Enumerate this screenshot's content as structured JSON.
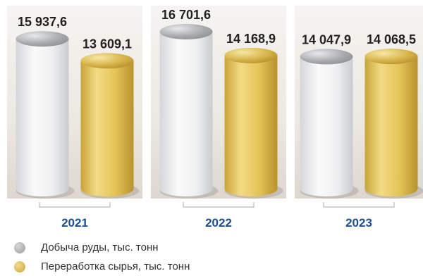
{
  "chart_data": {
    "type": "bar",
    "categories": [
      "2021",
      "2022",
      "2023"
    ],
    "series": [
      {
        "name": "Добыча руды, тыс. тонн",
        "values": [
          15937.6,
          16701.6,
          14047.9
        ],
        "labels": [
          "15 937,6",
          "16 701,6",
          "14 047,9"
        ],
        "color": "#b9b9b9"
      },
      {
        "name": "Переработка сырья, тыс. тонн",
        "values": [
          13609.1,
          14168.9,
          14068.5
        ],
        "labels": [
          "13 609,1",
          "14 168,9",
          "14 068,5"
        ],
        "color": "#e2c45a"
      }
    ],
    "title": "",
    "xlabel": "",
    "ylabel": "",
    "ylim": [
      0,
      18500
    ],
    "grid": false,
    "legend": "bottom-left"
  },
  "colors": {
    "panel": "#ebe7e1",
    "ore": "#b9b9b9",
    "processing": "#e2c45a",
    "year_text": "#1f4e8c"
  }
}
